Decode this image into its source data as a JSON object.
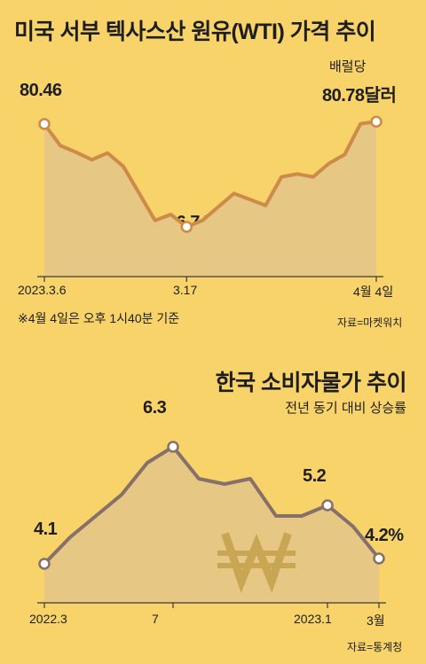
{
  "chart_data": [
    {
      "type": "area",
      "title": "미국 서부 텍사스산 원유(WTI) 가격 추이",
      "unit_label": "배럴당",
      "note": "※4월 4일은 오후 1시40분 기준",
      "source": "자료=마켓워치",
      "x_tick_labels": [
        "2023.3.6",
        "3.17",
        "4월 4일"
      ],
      "data_labels": [
        "80.46",
        "66.74",
        "80.78달러"
      ],
      "series": [
        {
          "name": "WTI",
          "values": [
            80.46,
            77.6,
            76.7,
            75.7,
            76.6,
            74.8,
            71.2,
            67.6,
            68.4,
            66.74,
            67.6,
            69.4,
            71.2,
            70.4,
            69.6,
            73.4,
            73.8,
            73.4,
            75.2,
            76.4,
            80.5,
            80.78
          ]
        }
      ],
      "ylim": [
        62,
        84
      ]
    },
    {
      "type": "area",
      "title": "한국 소비자물가 추이",
      "subtitle": "전년 동기 대비 상승률",
      "source": "자료=통계청",
      "x_tick_labels": [
        "2022.3",
        "7",
        "2023.1",
        "3월"
      ],
      "data_labels": [
        "4.1",
        "6.3",
        "5.2",
        "4.2%"
      ],
      "series": [
        {
          "name": "소비자물가 상승률",
          "values": [
            4.1,
            4.6,
            5.0,
            5.4,
            6.0,
            6.3,
            5.7,
            5.6,
            5.7,
            5.0,
            5.0,
            5.2,
            4.8,
            4.2
          ]
        }
      ],
      "ylim": [
        3.2,
        7.2
      ],
      "watermark_icon": "won-sign-icon"
    }
  ],
  "colors": {
    "background": "#f7d36a",
    "area_fill": "#e6c784",
    "wti_line": "#cd8a48",
    "cpi_line": "#86706a",
    "marker_fill": "#ffffff",
    "watermark": "#c8a653"
  }
}
